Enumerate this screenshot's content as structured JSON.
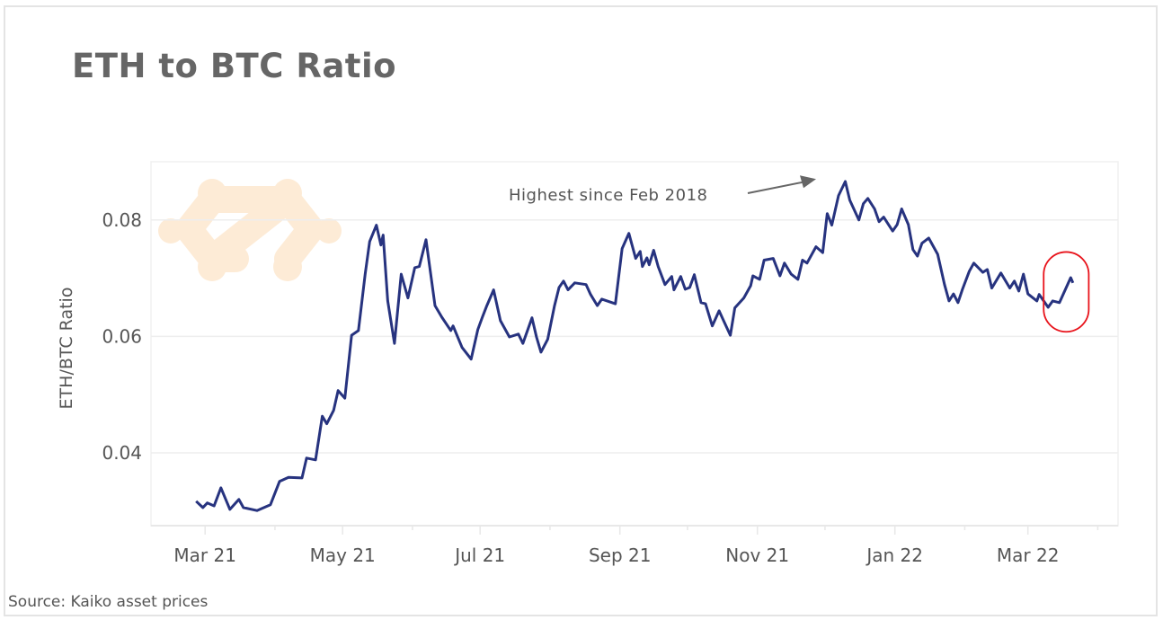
{
  "title": "ETH to BTC Ratio",
  "source": "Source: Kaiko asset prices",
  "colors": {
    "line": "#27337f",
    "highlight": "#e8131b",
    "annotation": "#666666",
    "grid": "#eeeeee",
    "watermark": "#fdebd6"
  },
  "watermark_icon": "kaiko-logo-icon",
  "chart_data": {
    "type": "line",
    "title": "ETH to BTC Ratio",
    "xlabel": "",
    "ylabel": "ETH/BTC Ratio",
    "xlim": [
      "2021-02-05",
      "2022-04-10"
    ],
    "ylim": [
      0.0275,
      0.09
    ],
    "grid": true,
    "x_ticks": [
      {
        "date": "2021-03-01",
        "label": "Mar 21"
      },
      {
        "date": "2021-05-01",
        "label": "May 21"
      },
      {
        "date": "2021-07-01",
        "label": "Jul 21"
      },
      {
        "date": "2021-09-01",
        "label": "Sep 21"
      },
      {
        "date": "2021-11-01",
        "label": "Nov 21"
      },
      {
        "date": "2022-01-01",
        "label": "Jan 22"
      },
      {
        "date": "2022-03-01",
        "label": "Mar 22"
      }
    ],
    "minor_ticks": [
      "2021-04-01",
      "2021-06-01",
      "2021-08-01",
      "2021-10-01",
      "2021-12-01",
      "2022-02-01",
      "2022-04-01"
    ],
    "y_ticks": [
      {
        "value": 0.04,
        "label": "0.04"
      },
      {
        "value": 0.06,
        "label": "0.06"
      },
      {
        "value": 0.08,
        "label": "0.08"
      }
    ],
    "annotations": [
      {
        "text": "Highest since Feb 2018",
        "points_to": {
          "date": "2021-12-07",
          "value": 0.0875
        }
      }
    ],
    "highlight": {
      "shape": "ellipse",
      "date_range": [
        "2022-03-08",
        "2022-03-28"
      ],
      "value_range": [
        0.0608,
        0.0745
      ]
    },
    "series": [
      {
        "x": [
          "2021-02-25",
          "2021-02-28",
          "2021-03-02",
          "2021-03-05",
          "2021-03-08",
          "2021-03-12",
          "2021-03-16",
          "2021-03-18",
          "2021-03-24",
          "2021-03-30",
          "2021-04-03",
          "2021-04-07",
          "2021-04-13",
          "2021-04-15",
          "2021-04-19",
          "2021-04-22",
          "2021-04-24",
          "2021-04-27",
          "2021-04-29",
          "2021-05-02",
          "2021-05-05",
          "2021-05-08",
          "2021-05-11",
          "2021-05-13",
          "2021-05-16",
          "2021-05-18",
          "2021-05-19",
          "2021-05-21",
          "2021-05-24",
          "2021-05-27",
          "2021-05-30",
          "2021-06-02",
          "2021-06-04",
          "2021-06-07",
          "2021-06-11",
          "2021-06-14",
          "2021-06-18",
          "2021-06-19",
          "2021-06-23",
          "2021-06-27",
          "2021-06-30",
          "2021-07-02",
          "2021-07-04",
          "2021-07-07",
          "2021-07-10",
          "2021-07-14",
          "2021-07-18",
          "2021-07-20",
          "2021-07-24",
          "2021-07-26",
          "2021-07-28",
          "2021-07-31",
          "2021-08-03",
          "2021-08-05",
          "2021-08-07",
          "2021-08-09",
          "2021-08-12",
          "2021-08-17",
          "2021-08-19",
          "2021-08-22",
          "2021-08-24",
          "2021-08-30",
          "2021-09-02",
          "2021-09-05",
          "2021-09-08",
          "2021-09-10",
          "2021-09-11",
          "2021-09-13",
          "2021-09-14",
          "2021-09-16",
          "2021-09-18",
          "2021-09-21",
          "2021-09-24",
          "2021-09-25",
          "2021-09-28",
          "2021-09-30",
          "2021-10-02",
          "2021-10-04",
          "2021-10-07",
          "2021-10-09",
          "2021-10-12",
          "2021-10-15",
          "2021-10-17",
          "2021-10-20",
          "2021-10-22",
          "2021-10-26",
          "2021-10-29",
          "2021-10-30",
          "2021-11-02",
          "2021-11-04",
          "2021-11-08",
          "2021-11-11",
          "2021-11-13",
          "2021-11-16",
          "2021-11-19",
          "2021-11-21",
          "2021-11-23",
          "2021-11-27",
          "2021-11-30",
          "2021-12-02",
          "2021-12-04",
          "2021-12-07",
          "2021-12-10",
          "2021-12-12",
          "2021-12-16",
          "2021-12-18",
          "2021-12-20",
          "2021-12-23",
          "2021-12-25",
          "2021-12-27",
          "2021-12-31",
          "2022-01-02",
          "2022-01-04",
          "2022-01-07",
          "2022-01-09",
          "2022-01-11",
          "2022-01-13",
          "2022-01-16",
          "2022-01-20",
          "2022-01-23",
          "2022-01-25",
          "2022-01-27",
          "2022-01-29",
          "2022-01-31",
          "2022-02-03",
          "2022-02-05",
          "2022-02-09",
          "2022-02-11",
          "2022-02-13",
          "2022-02-17",
          "2022-02-21",
          "2022-02-23",
          "2022-02-25",
          "2022-02-27",
          "2022-03-01",
          "2022-03-05",
          "2022-03-06",
          "2022-03-10",
          "2022-03-12",
          "2022-03-15",
          "2022-03-20",
          "2022-03-21"
        ],
        "values": [
          0.0317,
          0.0306,
          0.0314,
          0.0309,
          0.034,
          0.0303,
          0.032,
          0.0306,
          0.0301,
          0.0311,
          0.0351,
          0.0358,
          0.0357,
          0.0391,
          0.0388,
          0.0463,
          0.045,
          0.0473,
          0.0507,
          0.0494,
          0.0602,
          0.061,
          0.0707,
          0.0763,
          0.0791,
          0.0757,
          0.0774,
          0.0661,
          0.0588,
          0.0707,
          0.0666,
          0.0718,
          0.072,
          0.0766,
          0.0653,
          0.0633,
          0.061,
          0.0618,
          0.0581,
          0.0561,
          0.0612,
          0.0633,
          0.0653,
          0.068,
          0.0627,
          0.0599,
          0.0604,
          0.0588,
          0.0632,
          0.0599,
          0.0573,
          0.0595,
          0.0653,
          0.0684,
          0.0695,
          0.068,
          0.0692,
          0.0689,
          0.0672,
          0.0653,
          0.0664,
          0.0656,
          0.0751,
          0.0777,
          0.0734,
          0.0746,
          0.072,
          0.0735,
          0.0723,
          0.0748,
          0.072,
          0.0689,
          0.0703,
          0.068,
          0.0703,
          0.0681,
          0.0684,
          0.0706,
          0.0658,
          0.0656,
          0.0618,
          0.0644,
          0.0627,
          0.0602,
          0.0649,
          0.0666,
          0.0687,
          0.0704,
          0.0698,
          0.0731,
          0.0734,
          0.0704,
          0.0726,
          0.0707,
          0.0698,
          0.0731,
          0.0726,
          0.0754,
          0.0744,
          0.0811,
          0.0791,
          0.0842,
          0.0866,
          0.0834,
          0.08,
          0.0828,
          0.0837,
          0.0819,
          0.0797,
          0.0805,
          0.0781,
          0.0792,
          0.0819,
          0.0792,
          0.0749,
          0.0738,
          0.076,
          0.0769,
          0.0741,
          0.0689,
          0.0661,
          0.0673,
          0.0658,
          0.0681,
          0.0712,
          0.0726,
          0.071,
          0.0715,
          0.0683,
          0.0709,
          0.0683,
          0.0695,
          0.0678,
          0.0707,
          0.0673,
          0.0661,
          0.0672,
          0.065,
          0.0661,
          0.0658,
          0.0701,
          0.0692
        ]
      }
    ]
  }
}
